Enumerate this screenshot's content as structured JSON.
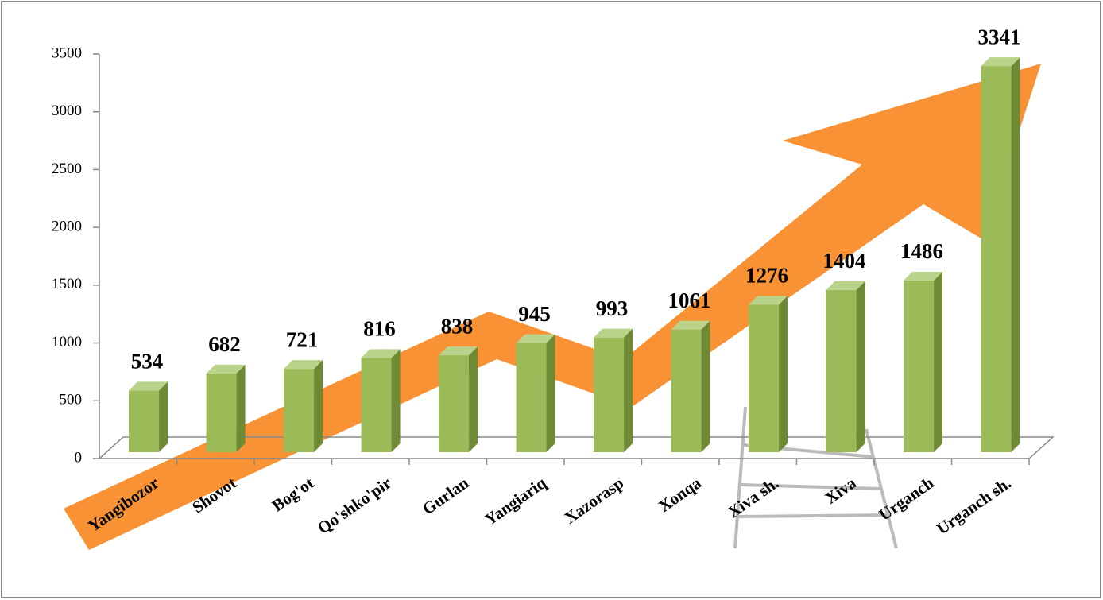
{
  "chart_data": {
    "type": "bar3d",
    "categories": [
      "Yangibozor",
      "Shovot",
      "Bog'ot",
      "Qo'shko'pir",
      "Gurlan",
      "Yangiariq",
      "Xazorasp",
      "Xonqa",
      "Xiva sh.",
      "Xiva",
      "Urganch",
      "Urganch sh."
    ],
    "values": [
      534,
      682,
      721,
      816,
      838,
      945,
      993,
      1061,
      1276,
      1404,
      1486,
      3341
    ],
    "color": "#9bbb59",
    "ylim": [
      0,
      3500
    ],
    "yticks": [
      0,
      500,
      1000,
      1500,
      2000,
      2500,
      3000,
      3500
    ]
  }
}
